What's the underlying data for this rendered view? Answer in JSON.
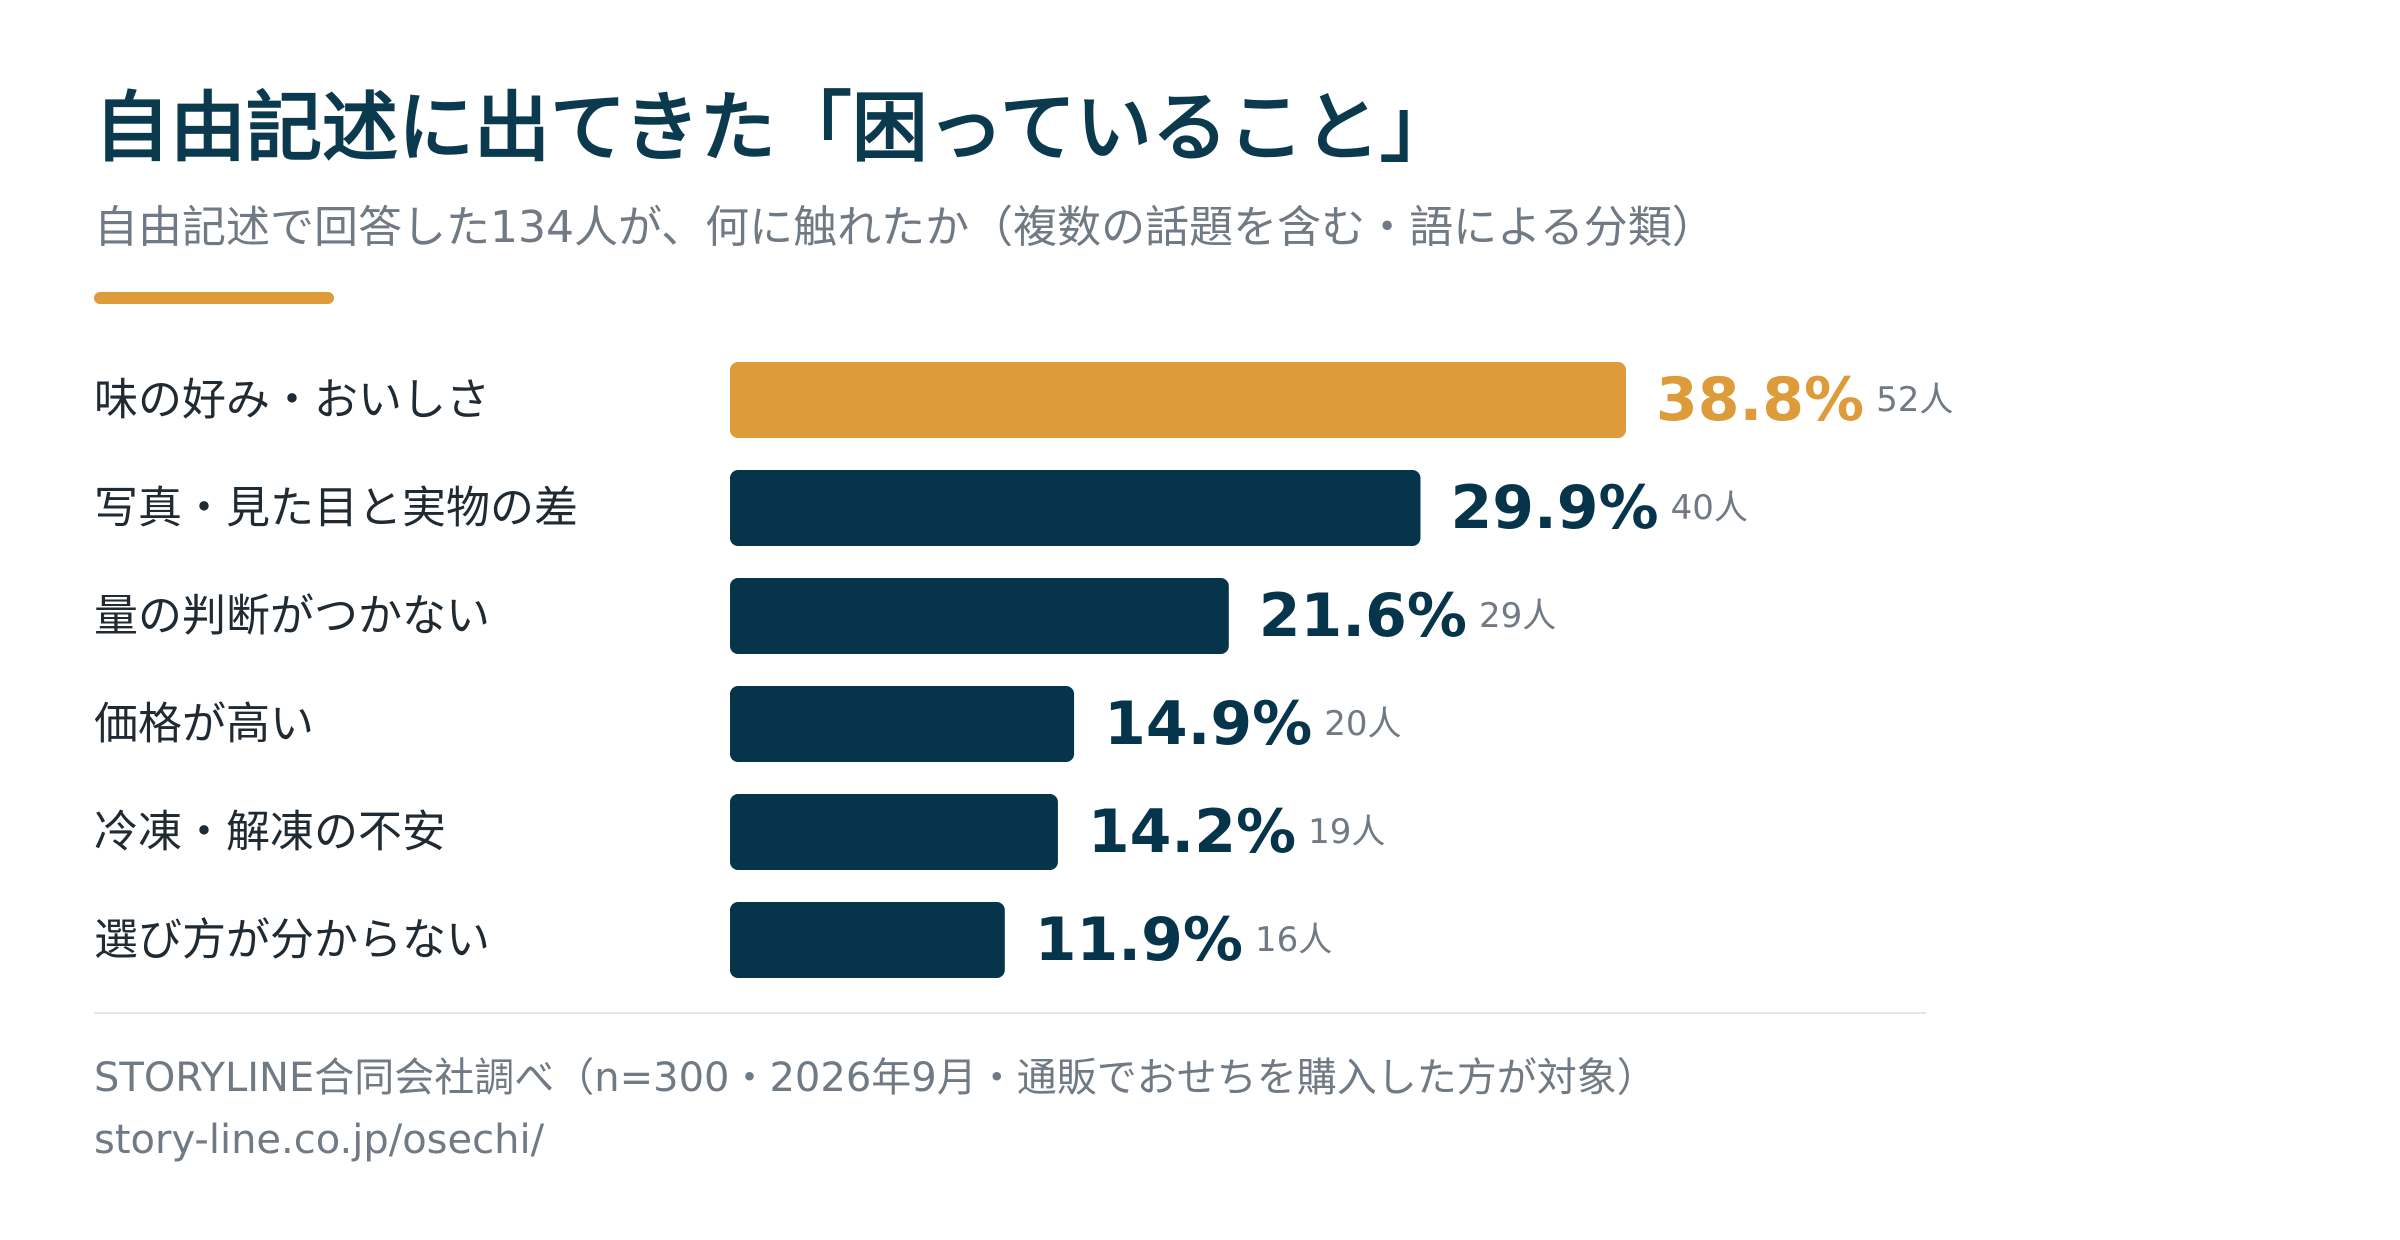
{
  "header": {
    "title": "自由記述に出てきた「困っていること」",
    "subtitle": "自由記述で回答した134人が、何に触れたか（複数の話題を含む・語による分類）"
  },
  "colors": {
    "accent": "#dd9b3a",
    "bar": "#06354b",
    "category_text": "#1f2a33",
    "count_text": "#707a84"
  },
  "chart_data": {
    "type": "bar",
    "orientation": "horizontal",
    "categories": [
      "味の好み・おいしさ",
      "写真・見た目と実物の差",
      "量の判断がつかない",
      "価格が高い",
      "冷凍・解凍の不安",
      "選び方が分からない"
    ],
    "values": [
      38.8,
      29.9,
      21.6,
      14.9,
      14.2,
      11.9
    ],
    "value_labels": [
      "38.8%",
      "29.9%",
      "21.6%",
      "14.9%",
      "14.2%",
      "11.9%"
    ],
    "count_labels": [
      "52人",
      "40人",
      "29人",
      "20人",
      "19人",
      "16人"
    ],
    "counts": [
      52,
      40,
      29,
      20,
      19,
      16
    ],
    "highlight_index": 0,
    "value_unit": "%",
    "grid": false,
    "legend": "none"
  },
  "footer": {
    "source": "STORYLINE合同会社調べ（n=300・2026年9月・通販でおせちを購入した方が対象）",
    "url": "story-line.co.jp/osechi/"
  }
}
